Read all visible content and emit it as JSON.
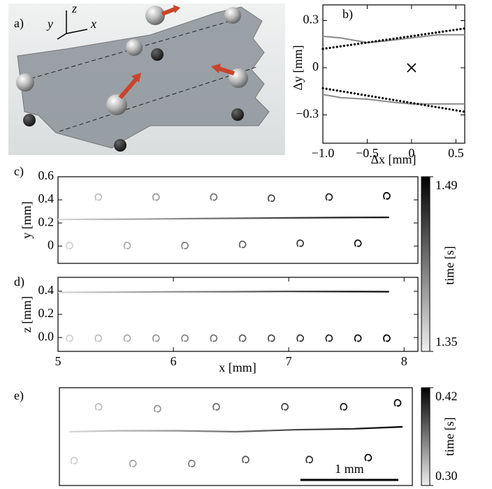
{
  "illustration": {
    "panel_label": "a)",
    "axis_labels": [
      "y",
      "z",
      "x"
    ]
  },
  "chart_data": [
    {
      "type": "line",
      "panel_label": "b)",
      "xlabel": "Δx [mm]",
      "ylabel": "Δy [mm]",
      "xlim": [
        -1.0,
        0.6
      ],
      "ylim": [
        -0.48,
        0.4
      ],
      "xticks": [
        {
          "value": -1.0,
          "label": "−1.0"
        },
        {
          "value": -0.5,
          "label": "−0.5"
        },
        0,
        0.5
      ],
      "yticks": [
        {
          "value": -0.3,
          "label": "−0.3"
        },
        0,
        0.3
      ],
      "series": [
        {
          "color": "#8a8a8a",
          "mode": "line",
          "x": [
            -1.0,
            -0.8,
            -0.5,
            -0.3,
            0,
            0.3,
            0.6
          ],
          "values": [
            0.2,
            0.19,
            0.16,
            0.17,
            0.19,
            0.21,
            0.21
          ]
        },
        {
          "color": "#8a8a8a",
          "mode": "line",
          "x": [
            -1.0,
            -0.8,
            -0.5,
            -0.2,
            0,
            0.3,
            0.6
          ],
          "values": [
            -0.17,
            -0.19,
            -0.2,
            -0.22,
            -0.23,
            -0.23,
            -0.23
          ]
        },
        {
          "color": "#000000",
          "mode": "dotted",
          "x": [
            -1.0,
            0.6
          ],
          "values": [
            0.12,
            0.25
          ]
        },
        {
          "color": "#000000",
          "mode": "dotted",
          "x": [
            -1.0,
            0.6
          ],
          "values": [
            -0.13,
            -0.28
          ]
        },
        {
          "color": "#000000",
          "mode": "cross",
          "x": [
            0
          ],
          "values": [
            0
          ]
        }
      ]
    },
    {
      "type": "line",
      "panel_label": "c)",
      "ylabel": "y [mm]",
      "xlim": [
        5,
        8.12
      ],
      "ylim": [
        -0.15,
        0.6
      ],
      "yticks": [
        0,
        0.2,
        0.4,
        0.6
      ],
      "colorbar": {
        "label": "time [s]",
        "lim": [
          1.35,
          1.49
        ],
        "ticks": [
          1.35,
          1.49
        ]
      },
      "series": [
        {
          "mode": "line",
          "x": [
            5.0,
            5.5,
            6.0,
            6.5,
            7.0,
            7.5,
            7.87
          ],
          "values": [
            0.23,
            0.232,
            0.236,
            0.24,
            0.244,
            0.247,
            0.248
          ]
        },
        {
          "mode": "markers",
          "x": [
            5.35,
            5.85,
            6.35,
            6.85,
            7.35,
            7.85
          ],
          "values": [
            0.42,
            0.42,
            0.42,
            0.41,
            0.42,
            0.43
          ]
        },
        {
          "mode": "markers",
          "x": [
            5.1,
            5.6,
            6.1,
            6.6,
            7.1,
            7.6
          ],
          "values": [
            0.0,
            0.0,
            0.0,
            0.01,
            0.02,
            0.02
          ]
        }
      ]
    },
    {
      "type": "line",
      "panel_label": "d)",
      "xlabel": "x [mm]",
      "ylabel": "z [mm]",
      "xlim": [
        5,
        8.12
      ],
      "ylim": [
        -0.12,
        0.52
      ],
      "xticks": [
        5,
        6,
        7,
        8
      ],
      "yticks": [
        {
          "value": 0,
          "label": "0.0"
        },
        0.2,
        0.4
      ],
      "series": [
        {
          "mode": "line",
          "x": [
            5.0,
            5.5,
            6.0,
            6.5,
            7.0,
            7.5,
            7.87
          ],
          "values": [
            0.39,
            0.392,
            0.395,
            0.396,
            0.398,
            0.397,
            0.396
          ]
        },
        {
          "mode": "markers",
          "x": [
            5.1,
            5.35,
            5.6,
            5.85,
            6.1,
            6.35,
            6.6,
            6.85,
            7.1,
            7.35,
            7.6,
            7.85
          ],
          "values": [
            -0.01,
            -0.01,
            -0.01,
            -0.01,
            -0.01,
            -0.01,
            -0.01,
            -0.01,
            -0.01,
            -0.01,
            -0.01,
            -0.01
          ]
        }
      ]
    },
    {
      "type": "line",
      "panel_label": "e)",
      "xlim": [
        0,
        3.6
      ],
      "ylim": [
        0,
        1
      ],
      "colorbar": {
        "label": "time [s]",
        "lim": [
          0.3,
          0.42
        ],
        "ticks": [
          {
            "value": 0.3,
            "label": "0.30"
          },
          0.42
        ]
      },
      "scalebar": {
        "label": "1 mm",
        "value": 1
      },
      "series": [
        {
          "mode": "line",
          "x": [
            0.1,
            0.6,
            1.2,
            1.8,
            2.4,
            3.0,
            3.5
          ],
          "values": [
            0.55,
            0.56,
            0.56,
            0.55,
            0.57,
            0.58,
            0.6
          ]
        },
        {
          "mode": "markers",
          "x": [
            0.4,
            1.0,
            1.6,
            2.3,
            2.9,
            3.45
          ],
          "values": [
            0.8,
            0.78,
            0.8,
            0.8,
            0.8,
            0.84
          ]
        },
        {
          "mode": "markers",
          "x": [
            0.15,
            0.75,
            1.35,
            1.9,
            2.55,
            3.15
          ],
          "values": [
            0.25,
            0.22,
            0.22,
            0.26,
            0.26,
            0.28
          ]
        }
      ]
    }
  ]
}
